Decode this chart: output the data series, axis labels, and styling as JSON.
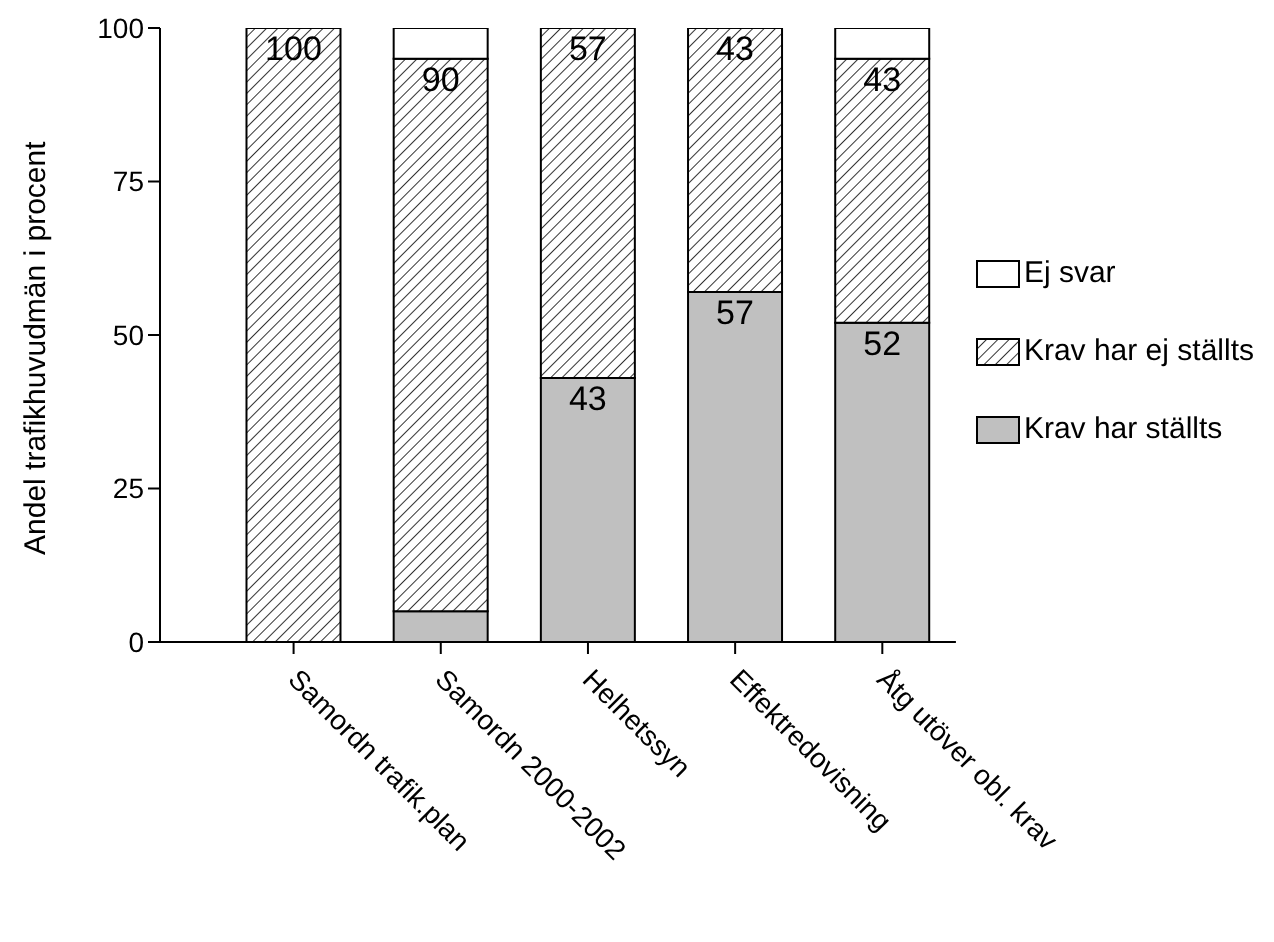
{
  "chart_data": {
    "type": "bar",
    "stacked": true,
    "ylabel": "Andel trafikhuvudmän i procent",
    "categories": [
      "Samordn trafik.plan",
      "Samordn 2000-2002",
      "Helhetssyn",
      "Effektredovisning",
      "Åtg utöver obl. krav"
    ],
    "series": [
      {
        "name": "Krav har ställts",
        "color": "#c0c0c0",
        "values": [
          0,
          5,
          43,
          57,
          52
        ],
        "value_labels": [
          null,
          null,
          "43",
          "57",
          "52"
        ]
      },
      {
        "name": "Krav har ej ställts",
        "color": "#000000",
        "values": [
          100,
          90,
          57,
          43,
          43
        ],
        "value_labels": [
          "100",
          "90",
          "57",
          "43",
          "43"
        ]
      },
      {
        "name": "Ej svar",
        "color": "#ffffff",
        "values": [
          0,
          5,
          0,
          0,
          5
        ]
      }
    ],
    "ylim": [
      0,
      100
    ],
    "yticks": [
      0,
      25,
      50,
      75,
      100
    ],
    "legend": "right"
  }
}
